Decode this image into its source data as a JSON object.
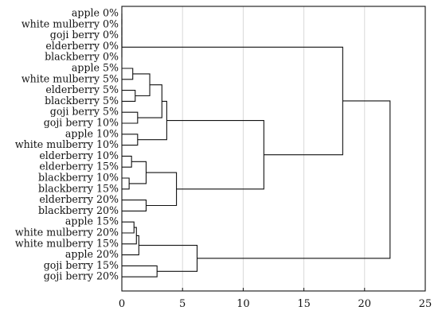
{
  "chart_data": {
    "type": "dendrogram",
    "orientation": "horizontal",
    "xlim": [
      0,
      25
    ],
    "x_ticks": [
      0,
      5,
      10,
      15,
      20,
      25
    ],
    "grid": true,
    "leaves": [
      "apple 0%",
      "white mulberry 0%",
      "goji berry 0%",
      "elderberry 0%",
      "blackberry 0%",
      "apple 5%",
      "white mulberry 5%",
      "elderberry 5%",
      "blackberry 5%",
      "goji berry 5%",
      "goji berry 10%",
      "apple 10%",
      "white mulberry 10%",
      "elderberry 10%",
      "elderberry 15%",
      "blackberry 10%",
      "blackberry 15%",
      "elderberry 20%",
      "blackberry 20%",
      "apple 15%",
      "white mulberry 20%",
      "white mulberry 15%",
      "apple 20%",
      "goji berry 15%",
      "goji berry 20%"
    ],
    "merges": [
      {
        "id": "c1",
        "children": [
          "apple 0%",
          "white mulberry 0%"
        ],
        "height": 0
      },
      {
        "id": "c2",
        "children": [
          "c1",
          "goji berry 0%"
        ],
        "height": 0
      },
      {
        "id": "c3",
        "children": [
          "c2",
          "elderberry 0%"
        ],
        "height": 0
      },
      {
        "id": "c4",
        "children": [
          "c3",
          "blackberry 0%"
        ],
        "height": 0
      },
      {
        "id": "c5",
        "children": [
          "apple 5%",
          "white mulberry 5%"
        ],
        "height": 0.9
      },
      {
        "id": "c6",
        "children": [
          "elderberry 5%",
          "blackberry 5%"
        ],
        "height": 1.1
      },
      {
        "id": "c7",
        "children": [
          "c5",
          "c6"
        ],
        "height": 2.3
      },
      {
        "id": "c8",
        "children": [
          "goji berry 5%",
          "goji berry 10%"
        ],
        "height": 1.3
      },
      {
        "id": "c9",
        "children": [
          "c7",
          "c8"
        ],
        "height": 3.3
      },
      {
        "id": "c10",
        "children": [
          "apple 10%",
          "white mulberry 10%"
        ],
        "height": 1.3
      },
      {
        "id": "c11",
        "children": [
          "c9",
          "c10"
        ],
        "height": 3.7
      },
      {
        "id": "c12",
        "children": [
          "elderberry 10%",
          "elderberry 15%"
        ],
        "height": 0.8
      },
      {
        "id": "c13",
        "children": [
          "blackberry 10%",
          "blackberry 15%"
        ],
        "height": 0.6
      },
      {
        "id": "c14",
        "children": [
          "c12",
          "c13"
        ],
        "height": 2.0
      },
      {
        "id": "c15",
        "children": [
          "elderberry 20%",
          "blackberry 20%"
        ],
        "height": 2.0
      },
      {
        "id": "c16",
        "children": [
          "c14",
          "c15"
        ],
        "height": 4.5
      },
      {
        "id": "c17",
        "children": [
          "c11",
          "c16"
        ],
        "height": 11.7
      },
      {
        "id": "c18",
        "children": [
          "c4",
          "c17"
        ],
        "height": 18.2
      },
      {
        "id": "c19",
        "children": [
          "apple 15%",
          "white mulberry 20%"
        ],
        "height": 1.0
      },
      {
        "id": "c20",
        "children": [
          "c19",
          "white mulberry 15%"
        ],
        "height": 1.2
      },
      {
        "id": "c21",
        "children": [
          "c20",
          "apple 20%"
        ],
        "height": 1.4
      },
      {
        "id": "c22",
        "children": [
          "goji berry 15%",
          "goji berry 20%"
        ],
        "height": 2.9
      },
      {
        "id": "c23",
        "children": [
          "c21",
          "c22"
        ],
        "height": 6.2
      },
      {
        "id": "c24",
        "children": [
          "c18",
          "c23"
        ],
        "height": 22.1
      }
    ]
  }
}
